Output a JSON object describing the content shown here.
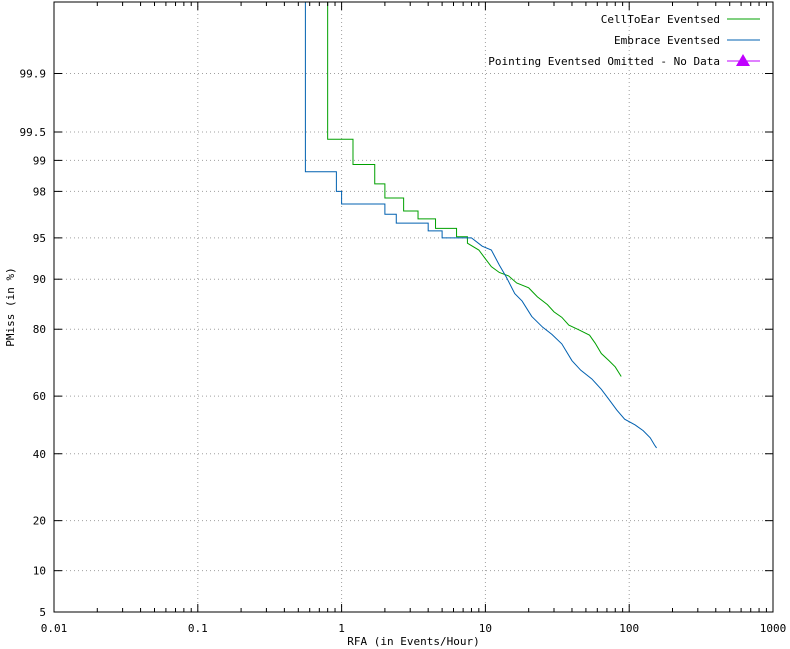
{
  "chart_data": {
    "type": "line",
    "title": "",
    "xlabel": "RFA (in Events/Hour)",
    "ylabel": "PMiss (in %)",
    "x_scale": "log",
    "y_scale": "normal-deviate",
    "xlim": [
      0.01,
      1000
    ],
    "ylim": [
      5,
      99.99
    ],
    "grid": true,
    "legend_position": "top-right",
    "x_ticks": [
      {
        "value": 0.01,
        "label": "0.01"
      },
      {
        "value": 0.1,
        "label": "0.1"
      },
      {
        "value": 1,
        "label": "1"
      },
      {
        "value": 10,
        "label": "10"
      },
      {
        "value": 100,
        "label": "100"
      },
      {
        "value": 1000,
        "label": "1000"
      }
    ],
    "y_ticks": [
      {
        "value": 5,
        "label": "5"
      },
      {
        "value": 10,
        "label": "10"
      },
      {
        "value": 20,
        "label": "20"
      },
      {
        "value": 40,
        "label": "40"
      },
      {
        "value": 60,
        "label": "60"
      },
      {
        "value": 80,
        "label": "80"
      },
      {
        "value": 90,
        "label": "90"
      },
      {
        "value": 95,
        "label": "95"
      },
      {
        "value": 98,
        "label": "98"
      },
      {
        "value": 99,
        "label": "99"
      },
      {
        "value": 99.5,
        "label": "99.5"
      },
      {
        "value": 99.9,
        "label": "99.9"
      }
    ],
    "series": [
      {
        "name": "CellToEar Eventsed",
        "color": "#00a000",
        "marker": "none",
        "points": [
          [
            0.8,
            99.99
          ],
          [
            0.8,
            99.4
          ],
          [
            1.2,
            99.4
          ],
          [
            1.2,
            98.9
          ],
          [
            1.7,
            98.9
          ],
          [
            1.7,
            98.3
          ],
          [
            2.0,
            98.3
          ],
          [
            2.0,
            97.7
          ],
          [
            2.7,
            97.7
          ],
          [
            2.7,
            97.0
          ],
          [
            3.4,
            97.0
          ],
          [
            3.4,
            96.5
          ],
          [
            4.5,
            96.5
          ],
          [
            4.5,
            95.8
          ],
          [
            6.3,
            95.8
          ],
          [
            6.3,
            95.1
          ],
          [
            7.5,
            95.1
          ],
          [
            7.5,
            94.5
          ],
          [
            9.0,
            93.8
          ],
          [
            10,
            92.8
          ],
          [
            11,
            91.8
          ],
          [
            12.5,
            91.0
          ],
          [
            14.5,
            90.5
          ],
          [
            16.5,
            89.4
          ],
          [
            20,
            88.6
          ],
          [
            23,
            87.0
          ],
          [
            27,
            85.5
          ],
          [
            30,
            84.0
          ],
          [
            34,
            82.8
          ],
          [
            38,
            81.0
          ],
          [
            45,
            79.8
          ],
          [
            53,
            78.5
          ],
          [
            58,
            76.4
          ],
          [
            64,
            73.5
          ],
          [
            72,
            71.5
          ],
          [
            80,
            69.5
          ],
          [
            88,
            66.5
          ]
        ]
      },
      {
        "name": "Embrace Eventsed",
        "color": "#0060b0",
        "marker": "none",
        "points": [
          [
            0.56,
            99.99
          ],
          [
            0.56,
            98.7
          ],
          [
            0.92,
            98.7
          ],
          [
            0.92,
            98.0
          ],
          [
            1.0,
            98.0
          ],
          [
            1.0,
            97.4
          ],
          [
            2.0,
            97.4
          ],
          [
            2.0,
            96.8
          ],
          [
            2.4,
            96.8
          ],
          [
            2.4,
            96.2
          ],
          [
            4.0,
            96.2
          ],
          [
            4.0,
            95.6
          ],
          [
            5.0,
            95.6
          ],
          [
            5.0,
            95.0
          ],
          [
            8.0,
            95.0
          ],
          [
            9.5,
            94.2
          ],
          [
            11,
            93.8
          ],
          [
            12.5,
            92.0
          ],
          [
            14,
            90.3
          ],
          [
            16,
            87.6
          ],
          [
            18,
            86.2
          ],
          [
            21,
            83.0
          ],
          [
            25,
            80.5
          ],
          [
            29,
            78.7
          ],
          [
            34,
            76.2
          ],
          [
            40,
            71.4
          ],
          [
            46,
            68.5
          ],
          [
            55,
            65.7
          ],
          [
            64,
            62.3
          ],
          [
            72,
            59.0
          ],
          [
            82,
            55.2
          ],
          [
            93,
            52.0
          ],
          [
            110,
            50.0
          ],
          [
            125,
            48.0
          ],
          [
            140,
            45.5
          ],
          [
            150,
            43.0
          ],
          [
            155,
            42.0
          ]
        ]
      },
      {
        "name": "Pointing Eventsed Omitted - No Data",
        "color": "#c000ff",
        "marker": "triangle",
        "points": []
      }
    ]
  }
}
